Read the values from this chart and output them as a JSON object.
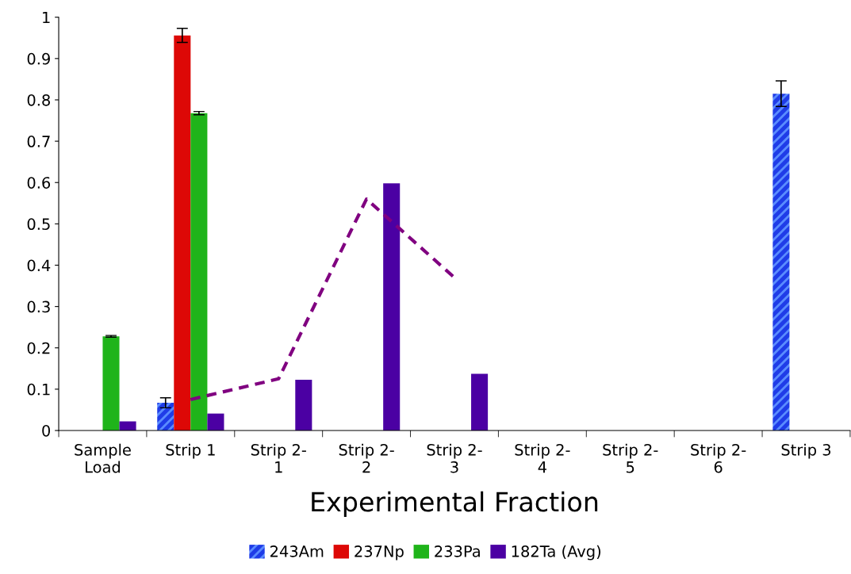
{
  "chart_data": {
    "type": "bar",
    "xlabel": "Experimental Fraction",
    "categories": [
      "Sample\nLoad",
      "Strip 1",
      "Strip 2-\n1",
      "Strip 2-\n2",
      "Strip 2-\n3",
      "Strip 2-\n4",
      "Strip 2-\n5",
      "Strip 2-\n6",
      "Strip 3"
    ],
    "series": [
      {
        "name": "243Am",
        "color": "#1f3ce8",
        "values": [
          0,
          0.067,
          0,
          0,
          0,
          0,
          0,
          0,
          0.815
        ],
        "errors": [
          null,
          0.012,
          null,
          null,
          null,
          null,
          null,
          null,
          0.031
        ]
      },
      {
        "name": "237Np",
        "color": "#dd0806",
        "values": [
          0,
          0.956,
          0,
          0,
          0,
          0,
          0,
          0,
          0
        ],
        "errors": [
          null,
          0.017,
          null,
          null,
          null,
          null,
          null,
          null,
          null
        ]
      },
      {
        "name": "233Pa",
        "color": "#1fb41a",
        "values": [
          0.228,
          0.768,
          0,
          0,
          0,
          0,
          0,
          0,
          0
        ],
        "errors": [
          0.002,
          0.004,
          null,
          null,
          null,
          null,
          null,
          null,
          null
        ]
      },
      {
        "name": "182Ta (Avg)",
        "color": "#4b00a3",
        "values": [
          0.022,
          0.041,
          0.123,
          0.598,
          0.137,
          0,
          0,
          0,
          0
        ]
      },
      {
        "type": "line",
        "color": "#800080",
        "line_style": "dashed",
        "values": [
          null,
          0.075,
          0.125,
          0.56,
          0.37,
          null,
          null,
          null,
          null
        ]
      }
    ],
    "ylim": [
      0,
      1
    ],
    "yticks": [
      0,
      0.1,
      0.2,
      0.3,
      0.4,
      0.5,
      0.6,
      0.7,
      0.8,
      0.9,
      1
    ],
    "legend": "bottom",
    "grid": false
  }
}
